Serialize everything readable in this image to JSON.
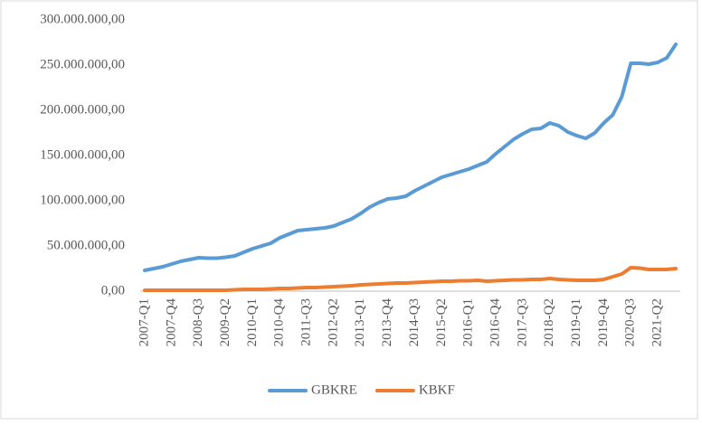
{
  "chart_data": {
    "type": "line",
    "categories": [
      "2007-Q1",
      null,
      null,
      "2007-Q4",
      null,
      null,
      "2008-Q3",
      null,
      null,
      "2009-Q2",
      null,
      null,
      "2010-Q1",
      null,
      null,
      "2010-Q4",
      null,
      null,
      "2011-Q3",
      null,
      null,
      "2012-Q2",
      null,
      null,
      "2013-Q1",
      null,
      null,
      "2013-Q4",
      null,
      null,
      "2014-Q3",
      null,
      null,
      "2015-Q2",
      null,
      null,
      "2016-Q1",
      null,
      null,
      "2016-Q4",
      null,
      null,
      "2017-Q3",
      null,
      null,
      "2018-Q2",
      null,
      null,
      "2019-Q1",
      null,
      null,
      "2019-Q4",
      null,
      null,
      "2020-Q3",
      null,
      null,
      "2021-Q2",
      null,
      null
    ],
    "series": [
      {
        "name": "GBKRE",
        "color": "#5b9bd5",
        "values": [
          23000000,
          25000000,
          27000000,
          30000000,
          33000000,
          35000000,
          37000000,
          36500000,
          36500000,
          37500000,
          39000000,
          43000000,
          47000000,
          50000000,
          53000000,
          59000000,
          63000000,
          67000000,
          68000000,
          69000000,
          70000000,
          72000000,
          76000000,
          80000000,
          86000000,
          93000000,
          98000000,
          102000000,
          103000000,
          105000000,
          111000000,
          116000000,
          121000000,
          126000000,
          129000000,
          132000000,
          135000000,
          139000000,
          143000000,
          152000000,
          160000000,
          168000000,
          174000000,
          179000000,
          180000000,
          186000000,
          183000000,
          176000000,
          172000000,
          169000000,
          175000000,
          186000000,
          195000000,
          215000000,
          252000000,
          252000000,
          251000000,
          253000000,
          258000000,
          273000000
        ]
      },
      {
        "name": "KBKF",
        "color": "#ed7d31",
        "values": [
          1000000,
          1000000,
          1000000,
          1000000,
          1000000,
          1000000,
          1000000,
          1000000,
          1000000,
          1000000,
          1500000,
          2000000,
          2000000,
          2000000,
          2500000,
          3000000,
          3000000,
          3500000,
          4000000,
          4000000,
          4500000,
          5000000,
          5500000,
          6000000,
          7000000,
          7500000,
          8000000,
          8500000,
          9000000,
          9000000,
          9500000,
          10000000,
          10500000,
          11000000,
          11000000,
          11500000,
          11500000,
          12000000,
          11000000,
          11500000,
          12000000,
          12500000,
          12500000,
          13000000,
          13000000,
          14000000,
          13000000,
          12500000,
          12000000,
          12000000,
          12000000,
          13000000,
          16000000,
          19000000,
          26000000,
          25500000,
          24000000,
          24000000,
          24000000,
          25000000
        ]
      }
    ],
    "ylim": [
      0,
      300000000
    ],
    "yticks": [
      {
        "value": 0,
        "label": "0,00"
      },
      {
        "value": 50000000,
        "label": "50.000.000,00"
      },
      {
        "value": 100000000,
        "label": "100.000.000,00"
      },
      {
        "value": 150000000,
        "label": "150.000.000,00"
      },
      {
        "value": 200000000,
        "label": "200.000.000,00"
      },
      {
        "value": 250000000,
        "label": "250.000.000,00"
      },
      {
        "value": 300000000,
        "label": "300.000.000,00"
      }
    ],
    "grid": false,
    "legend": "bottom"
  }
}
